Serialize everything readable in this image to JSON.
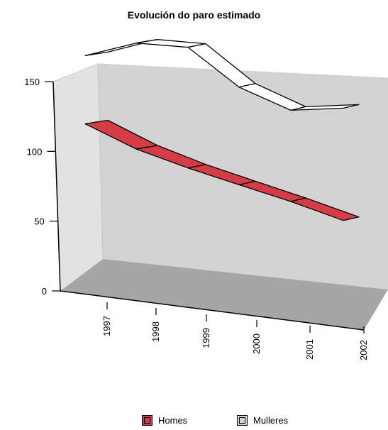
{
  "chart_data": {
    "type": "line",
    "title": "Evolución do paro estimado",
    "categories": [
      "1997",
      "1998",
      "1999",
      "2000",
      "2001",
      "2002"
    ],
    "ylim": [
      0,
      150
    ],
    "yticks": [
      "0",
      "50",
      "100",
      "150"
    ],
    "series": [
      {
        "name": "Homes",
        "values": [
          88,
          76,
          67,
          59,
          51,
          42
        ],
        "color": "#d43c46"
      },
      {
        "name": "Mulleres",
        "values": [
          111,
          117,
          115,
          96,
          85,
          86
        ],
        "color": "#ffffff"
      }
    ],
    "style": "3d",
    "legend": "bottom",
    "colors": {
      "wall": "#d3d3d3",
      "floor": "#a6a6a6"
    }
  }
}
